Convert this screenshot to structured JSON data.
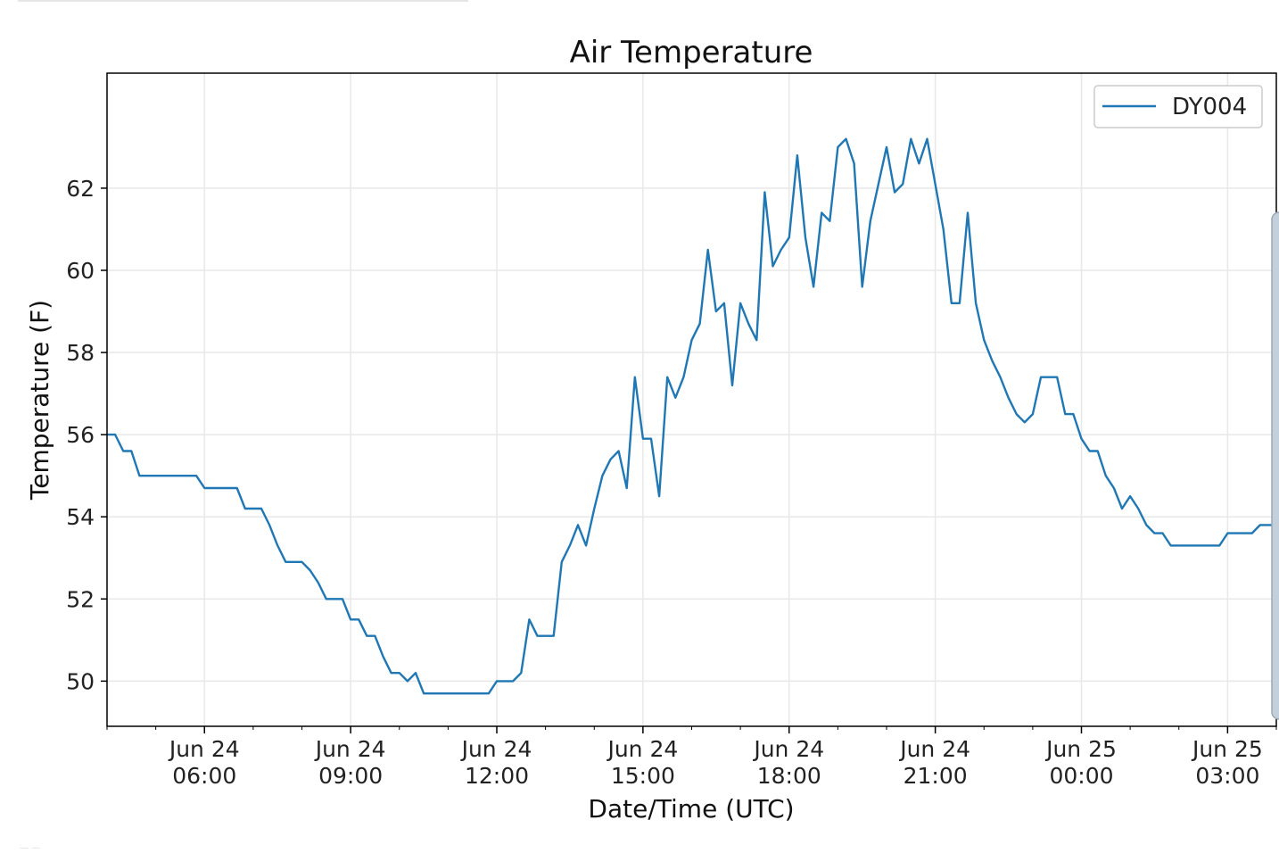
{
  "chart_data": {
    "type": "line",
    "title": "Air Temperature",
    "xlabel": "Date/Time (UTC)",
    "ylabel": "Temperature (F)",
    "x_tick_labels": [
      {
        "x": "2024-06-24T06:00",
        "date": "Jun 24",
        "time": "06:00"
      },
      {
        "x": "2024-06-24T09:00",
        "date": "Jun 24",
        "time": "09:00"
      },
      {
        "x": "2024-06-24T12:00",
        "date": "Jun 24",
        "time": "12:00"
      },
      {
        "x": "2024-06-24T15:00",
        "date": "Jun 24",
        "time": "15:00"
      },
      {
        "x": "2024-06-24T18:00",
        "date": "Jun 24",
        "time": "18:00"
      },
      {
        "x": "2024-06-24T21:00",
        "date": "Jun 24",
        "time": "21:00"
      },
      {
        "x": "2024-06-25T00:00",
        "date": "Jun 25",
        "time": "00:00"
      },
      {
        "x": "2024-06-25T03:00",
        "date": "Jun 25",
        "time": "03:00"
      }
    ],
    "y_ticks": [
      50,
      52,
      54,
      56,
      58,
      60,
      62
    ],
    "xlim": [
      "2024-06-24T04:00",
      "2024-06-25T04:00"
    ],
    "ylim": [
      48.9,
      64.8
    ],
    "grid": true,
    "legend_position": "top-right",
    "series": [
      {
        "name": "DY004",
        "color": "#1f77b4",
        "points": [
          [
            "2024-06-24T04:00",
            56.0
          ],
          [
            "2024-06-24T04:10",
            56.0
          ],
          [
            "2024-06-24T04:20",
            55.6
          ],
          [
            "2024-06-24T04:30",
            55.6
          ],
          [
            "2024-06-24T04:40",
            55.0
          ],
          [
            "2024-06-24T05:50",
            55.0
          ],
          [
            "2024-06-24T06:00",
            54.7
          ],
          [
            "2024-06-24T06:40",
            54.7
          ],
          [
            "2024-06-24T06:50",
            54.2
          ],
          [
            "2024-06-24T07:10",
            54.2
          ],
          [
            "2024-06-24T07:20",
            53.8
          ],
          [
            "2024-06-24T07:30",
            53.3
          ],
          [
            "2024-06-24T07:40",
            52.9
          ],
          [
            "2024-06-24T08:00",
            52.9
          ],
          [
            "2024-06-24T08:10",
            52.7
          ],
          [
            "2024-06-24T08:20",
            52.4
          ],
          [
            "2024-06-24T08:30",
            52.0
          ],
          [
            "2024-06-24T08:50",
            52.0
          ],
          [
            "2024-06-24T09:00",
            51.5
          ],
          [
            "2024-06-24T09:10",
            51.5
          ],
          [
            "2024-06-24T09:20",
            51.1
          ],
          [
            "2024-06-24T09:30",
            51.1
          ],
          [
            "2024-06-24T09:40",
            50.6
          ],
          [
            "2024-06-24T09:50",
            50.2
          ],
          [
            "2024-06-24T10:00",
            50.2
          ],
          [
            "2024-06-24T10:10",
            50.0
          ],
          [
            "2024-06-24T10:20",
            50.2
          ],
          [
            "2024-06-24T10:30",
            49.7
          ],
          [
            "2024-06-24T11:50",
            49.7
          ],
          [
            "2024-06-24T12:00",
            50.0
          ],
          [
            "2024-06-24T12:20",
            50.0
          ],
          [
            "2024-06-24T12:30",
            50.2
          ],
          [
            "2024-06-24T12:40",
            51.5
          ],
          [
            "2024-06-24T12:50",
            51.1
          ],
          [
            "2024-06-24T13:10",
            51.1
          ],
          [
            "2024-06-24T13:20",
            52.9
          ],
          [
            "2024-06-24T13:30",
            53.3
          ],
          [
            "2024-06-24T13:40",
            53.8
          ],
          [
            "2024-06-24T13:50",
            53.3
          ],
          [
            "2024-06-24T14:00",
            54.2
          ],
          [
            "2024-06-24T14:10",
            55.0
          ],
          [
            "2024-06-24T14:20",
            55.4
          ],
          [
            "2024-06-24T14:30",
            55.6
          ],
          [
            "2024-06-24T14:40",
            54.7
          ],
          [
            "2024-06-24T14:50",
            57.4
          ],
          [
            "2024-06-24T15:00",
            55.9
          ],
          [
            "2024-06-24T15:10",
            55.9
          ],
          [
            "2024-06-24T15:20",
            54.5
          ],
          [
            "2024-06-24T15:30",
            57.4
          ],
          [
            "2024-06-24T15:40",
            56.9
          ],
          [
            "2024-06-24T15:50",
            57.4
          ],
          [
            "2024-06-24T16:00",
            58.3
          ],
          [
            "2024-06-24T16:10",
            58.7
          ],
          [
            "2024-06-24T16:20",
            60.5
          ],
          [
            "2024-06-24T16:30",
            59.0
          ],
          [
            "2024-06-24T16:40",
            59.2
          ],
          [
            "2024-06-24T16:50",
            57.2
          ],
          [
            "2024-06-24T17:00",
            59.2
          ],
          [
            "2024-06-24T17:10",
            58.7
          ],
          [
            "2024-06-24T17:20",
            58.3
          ],
          [
            "2024-06-24T17:30",
            61.9
          ],
          [
            "2024-06-24T17:40",
            60.1
          ],
          [
            "2024-06-24T17:50",
            60.5
          ],
          [
            "2024-06-24T18:00",
            60.8
          ],
          [
            "2024-06-24T18:10",
            62.8
          ],
          [
            "2024-06-24T18:20",
            60.8
          ],
          [
            "2024-06-24T18:30",
            59.6
          ],
          [
            "2024-06-24T18:40",
            61.4
          ],
          [
            "2024-06-24T18:50",
            61.2
          ],
          [
            "2024-06-24T19:00",
            63.0
          ],
          [
            "2024-06-24T19:10",
            63.2
          ],
          [
            "2024-06-24T19:20",
            62.6
          ],
          [
            "2024-06-24T19:30",
            59.6
          ],
          [
            "2024-06-24T19:40",
            61.2
          ],
          [
            "2024-06-24T19:50",
            62.1
          ],
          [
            "2024-06-24T20:00",
            63.0
          ],
          [
            "2024-06-24T20:10",
            61.9
          ],
          [
            "2024-06-24T20:20",
            62.1
          ],
          [
            "2024-06-24T20:30",
            63.2
          ],
          [
            "2024-06-24T20:40",
            62.6
          ],
          [
            "2024-06-24T20:50",
            63.2
          ],
          [
            "2024-06-24T21:00",
            62.1
          ],
          [
            "2024-06-24T21:10",
            61.0
          ],
          [
            "2024-06-24T21:20",
            59.2
          ],
          [
            "2024-06-24T21:30",
            59.2
          ],
          [
            "2024-06-24T21:40",
            61.4
          ],
          [
            "2024-06-24T21:50",
            59.2
          ],
          [
            "2024-06-24T22:00",
            58.3
          ],
          [
            "2024-06-24T22:10",
            57.8
          ],
          [
            "2024-06-24T22:20",
            57.4
          ],
          [
            "2024-06-24T22:30",
            56.9
          ],
          [
            "2024-06-24T22:40",
            56.5
          ],
          [
            "2024-06-24T22:50",
            56.3
          ],
          [
            "2024-06-24T23:00",
            56.5
          ],
          [
            "2024-06-24T23:10",
            57.4
          ],
          [
            "2024-06-24T23:30",
            57.4
          ],
          [
            "2024-06-24T23:40",
            56.5
          ],
          [
            "2024-06-24T23:50",
            56.5
          ],
          [
            "2024-06-25T00:00",
            55.9
          ],
          [
            "2024-06-25T00:10",
            55.6
          ],
          [
            "2024-06-25T00:20",
            55.6
          ],
          [
            "2024-06-25T00:30",
            55.0
          ],
          [
            "2024-06-25T00:40",
            54.7
          ],
          [
            "2024-06-25T00:50",
            54.2
          ],
          [
            "2024-06-25T01:00",
            54.5
          ],
          [
            "2024-06-25T01:10",
            54.2
          ],
          [
            "2024-06-25T01:20",
            53.8
          ],
          [
            "2024-06-25T01:30",
            53.6
          ],
          [
            "2024-06-25T01:40",
            53.6
          ],
          [
            "2024-06-25T01:50",
            53.3
          ],
          [
            "2024-06-25T02:50",
            53.3
          ],
          [
            "2024-06-25T03:00",
            53.6
          ],
          [
            "2024-06-25T03:30",
            53.6
          ],
          [
            "2024-06-25T03:40",
            53.8
          ],
          [
            "2024-06-25T04:00",
            53.8
          ]
        ]
      }
    ]
  }
}
